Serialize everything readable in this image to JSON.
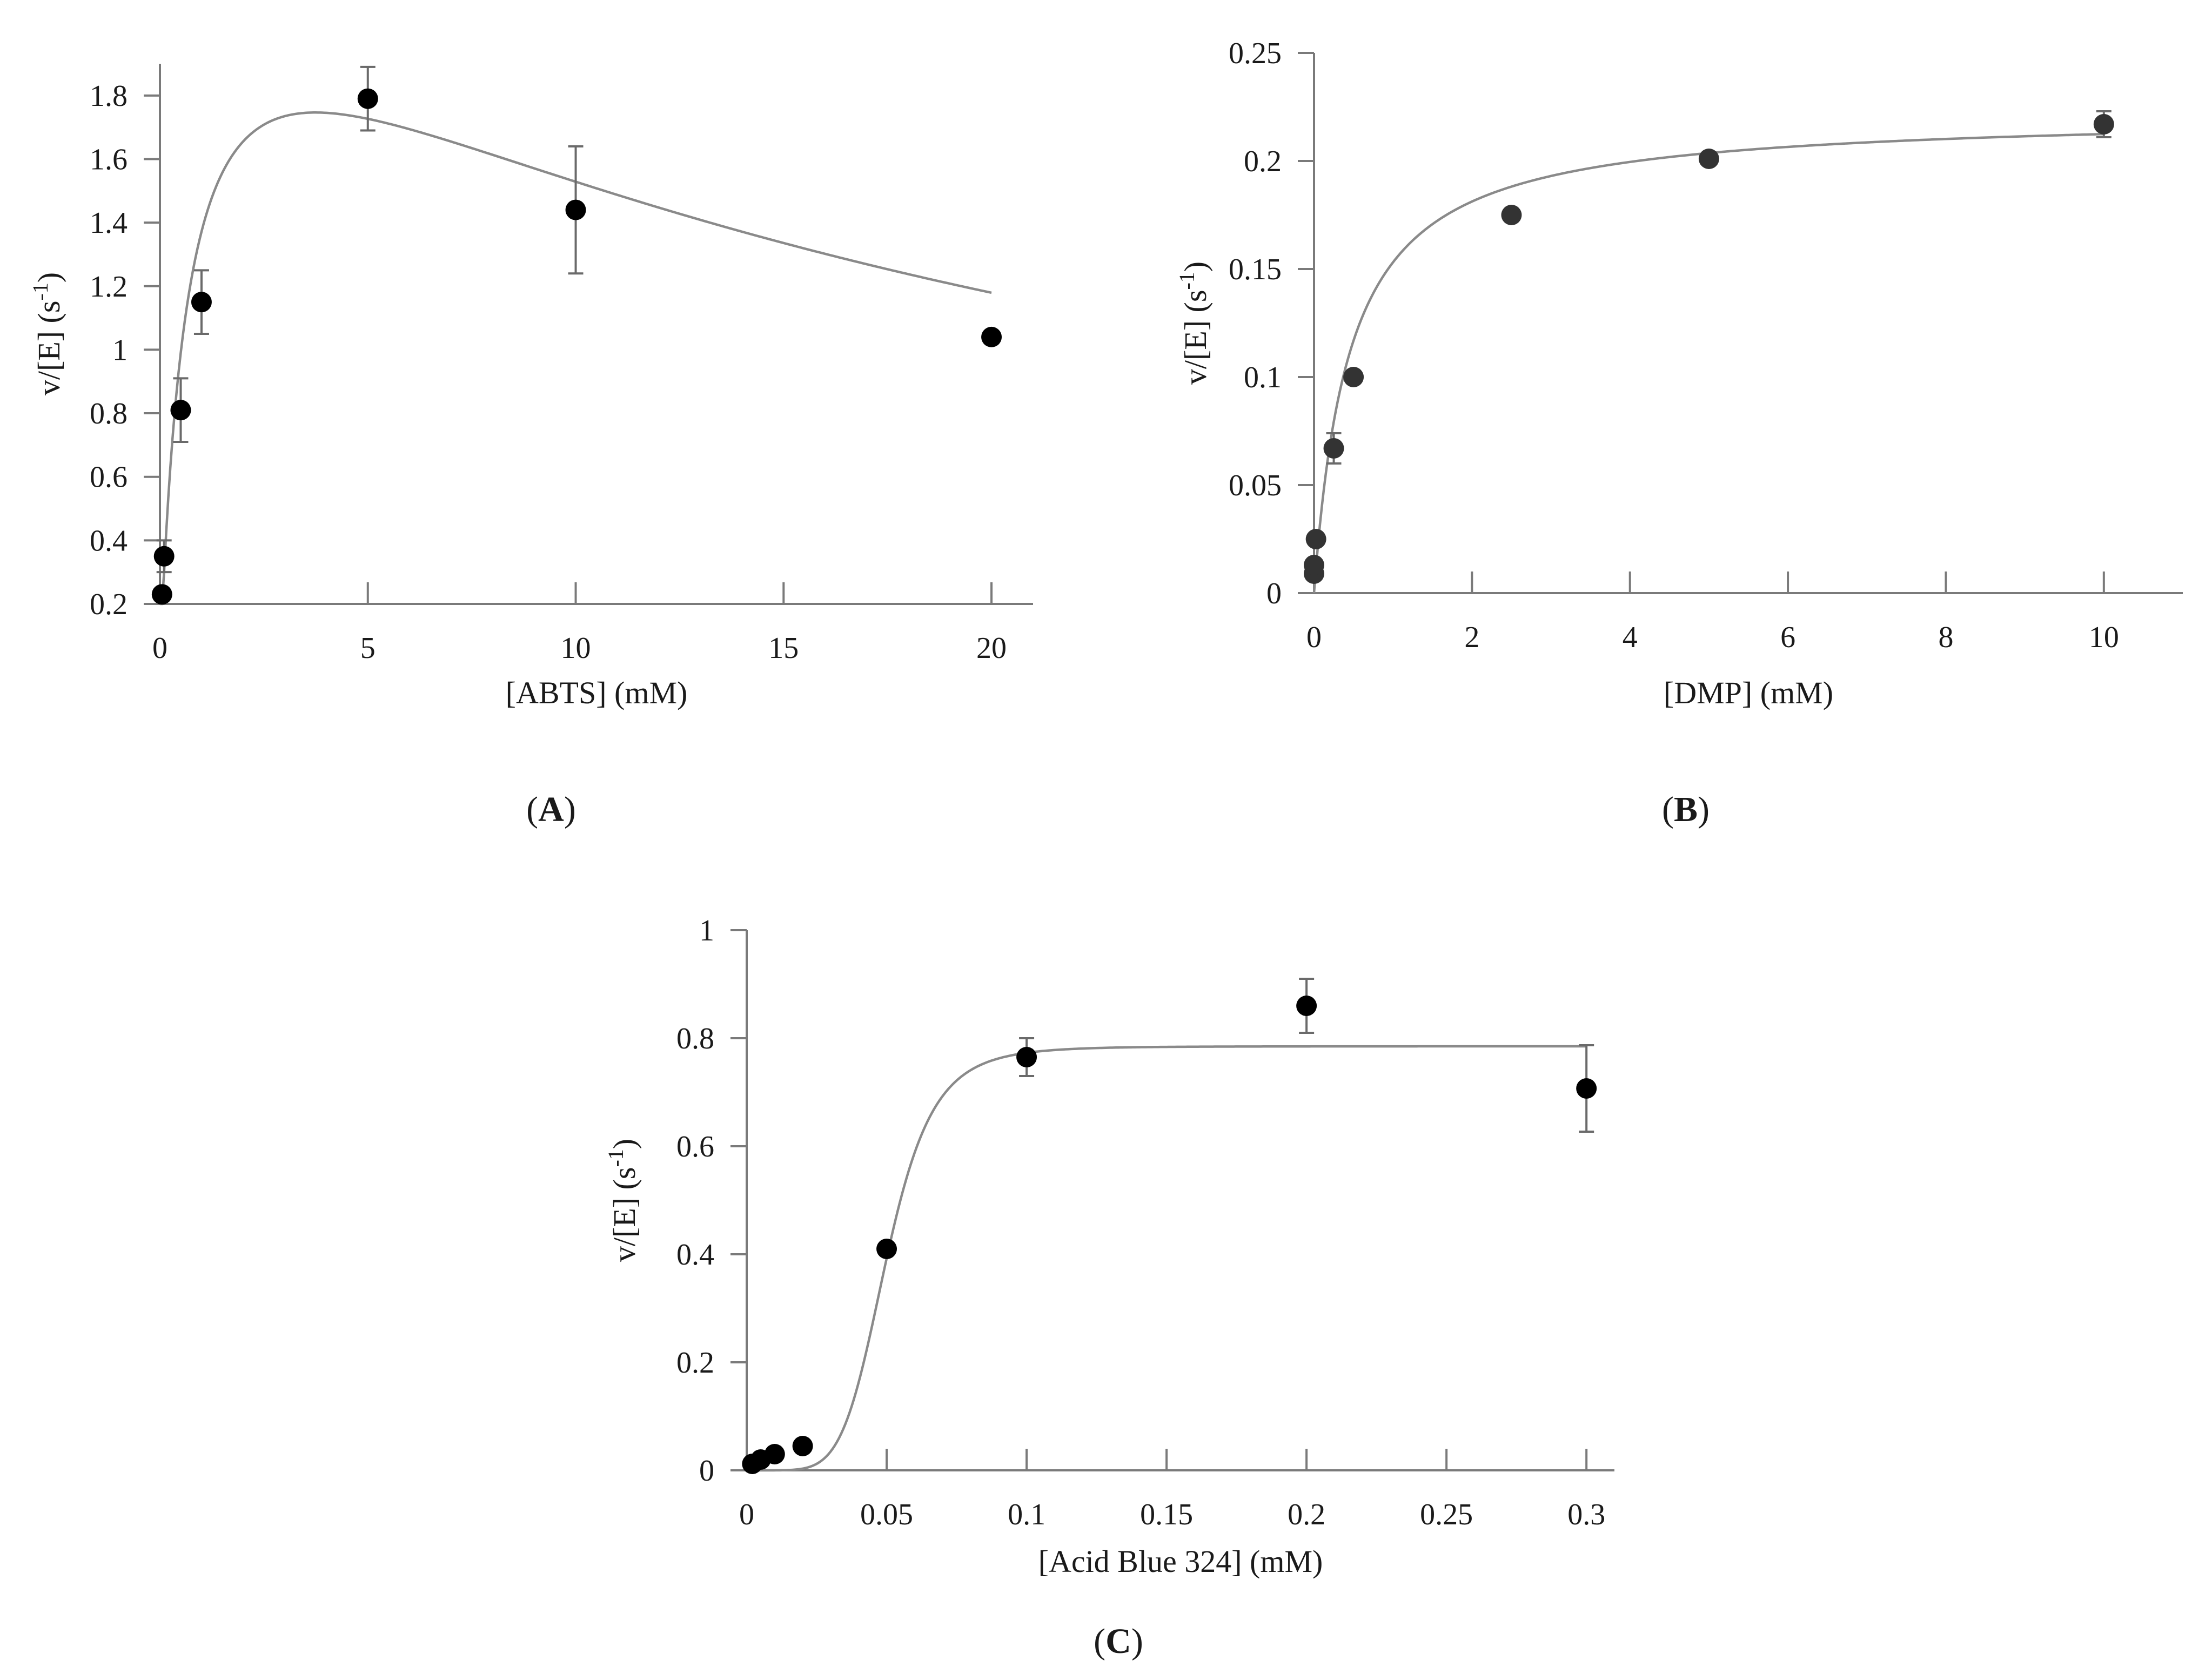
{
  "chart_data": [
    {
      "id": "A",
      "type": "scatter",
      "panel_label": {
        "open": "(",
        "letter": "A",
        "close": ")"
      },
      "xlabel": "[ABTS] (mM)",
      "ylabel": {
        "main": "v/[E] (s",
        "sup": "-1",
        "close": ")"
      },
      "xlim": [
        0,
        21
      ],
      "ylim": [
        0.2,
        1.9
      ],
      "x_ticks": [
        0,
        5,
        10,
        15,
        20
      ],
      "x_tick_labels": [
        "0",
        "5",
        "10",
        "15",
        "20"
      ],
      "y_ticks": [
        0.2,
        0.4,
        0.6,
        0.8,
        1.0,
        1.2,
        1.4,
        1.6,
        1.8
      ],
      "y_tick_labels": [
        "0.2",
        "0.4",
        "0.6",
        "0.8",
        "1",
        "1.2",
        "1.4",
        "1.6",
        "1.8"
      ],
      "grid": false,
      "point_color": "#000000",
      "curve_color": "#8a8a8a",
      "points": [
        {
          "x": 0.05,
          "y": 0.23,
          "err": 0
        },
        {
          "x": 0.1,
          "y": 0.35,
          "err": 0.05
        },
        {
          "x": 0.5,
          "y": 0.81,
          "err": 0.1
        },
        {
          "x": 1.0,
          "y": 1.15,
          "err": 0.1
        },
        {
          "x": 5.0,
          "y": 1.79,
          "err": 0.1
        },
        {
          "x": 10.0,
          "y": 1.44,
          "err": 0.2
        },
        {
          "x": 20.0,
          "y": 1.04,
          "err": 0
        }
      ],
      "fit": {
        "model": "substrate_inhibition",
        "vmax": 2.4,
        "km": 0.7,
        "ki": 20,
        "x_from": 0.0,
        "x_to": 20.0
      }
    },
    {
      "id": "B",
      "type": "scatter",
      "panel_label": {
        "open": "(",
        "letter": "B",
        "close": ")"
      },
      "xlabel": "[DMP] (mM)",
      "ylabel": {
        "main": "v/[E] (s",
        "sup": "-1",
        "close": ")"
      },
      "xlim": [
        0,
        11
      ],
      "ylim": [
        0,
        0.25
      ],
      "x_ticks": [
        0,
        2,
        4,
        6,
        8,
        10
      ],
      "x_tick_labels": [
        "0",
        "2",
        "4",
        "6",
        "8",
        "10"
      ],
      "y_ticks": [
        0,
        0.05,
        0.1,
        0.15,
        0.2,
        0.25
      ],
      "y_tick_labels": [
        "0",
        "0.05",
        "0.1",
        "0.15",
        "0.2",
        "0.25"
      ],
      "grid": false,
      "point_color": "#333333",
      "curve_color": "#8a8a8a",
      "points": [
        {
          "x": 0.0,
          "y": 0.009,
          "err": 0
        },
        {
          "x": 0.0,
          "y": 0.013,
          "err": 0
        },
        {
          "x": 0.025,
          "y": 0.025,
          "err": 0
        },
        {
          "x": 0.25,
          "y": 0.067,
          "err": 0.007
        },
        {
          "x": 0.5,
          "y": 0.1,
          "err": 0
        },
        {
          "x": 2.5,
          "y": 0.175,
          "err": 0
        },
        {
          "x": 5.0,
          "y": 0.201,
          "err": 0
        },
        {
          "x": 10.0,
          "y": 0.217,
          "err": 0.006
        }
      ],
      "fit": {
        "model": "michaelis_menten",
        "vmax": 0.222,
        "km": 0.45,
        "x_from": 0.0,
        "x_to": 10.0
      }
    },
    {
      "id": "C",
      "type": "scatter",
      "panel_label": {
        "open": "(",
        "letter": "C",
        "close": ")"
      },
      "xlabel": "[Acid Blue 324] (mM)",
      "ylabel": {
        "main": "v/[E] (s",
        "sup": "-1",
        "close": ")"
      },
      "xlim": [
        0,
        0.31
      ],
      "ylim": [
        0,
        1
      ],
      "x_ticks": [
        0,
        0.05,
        0.1,
        0.15,
        0.2,
        0.25,
        0.3
      ],
      "x_tick_labels": [
        "0",
        "0.05",
        "0.1",
        "0.15",
        "0.2",
        "0.25",
        "0.3"
      ],
      "y_ticks": [
        0,
        0.2,
        0.4,
        0.6,
        0.8,
        1
      ],
      "y_tick_labels": [
        "0",
        "0.2",
        "0.4",
        "0.6",
        "0.8",
        "1"
      ],
      "grid": false,
      "point_color": "#000000",
      "curve_color": "#8a8a8a",
      "points": [
        {
          "x": 0.002,
          "y": 0.012,
          "err": 0
        },
        {
          "x": 0.005,
          "y": 0.02,
          "err": 0
        },
        {
          "x": 0.01,
          "y": 0.03,
          "err": 0
        },
        {
          "x": 0.02,
          "y": 0.045,
          "err": 0
        },
        {
          "x": 0.05,
          "y": 0.41,
          "err": 0
        },
        {
          "x": 0.1,
          "y": 0.765,
          "err": 0.035
        },
        {
          "x": 0.2,
          "y": 0.86,
          "err": 0.05
        },
        {
          "x": 0.3,
          "y": 0.707,
          "err": 0.08
        }
      ],
      "fit": {
        "model": "hill",
        "vmax": 0.785,
        "k": 0.05,
        "n": 6,
        "x_from": 0.0,
        "x_to": 0.3
      }
    }
  ]
}
